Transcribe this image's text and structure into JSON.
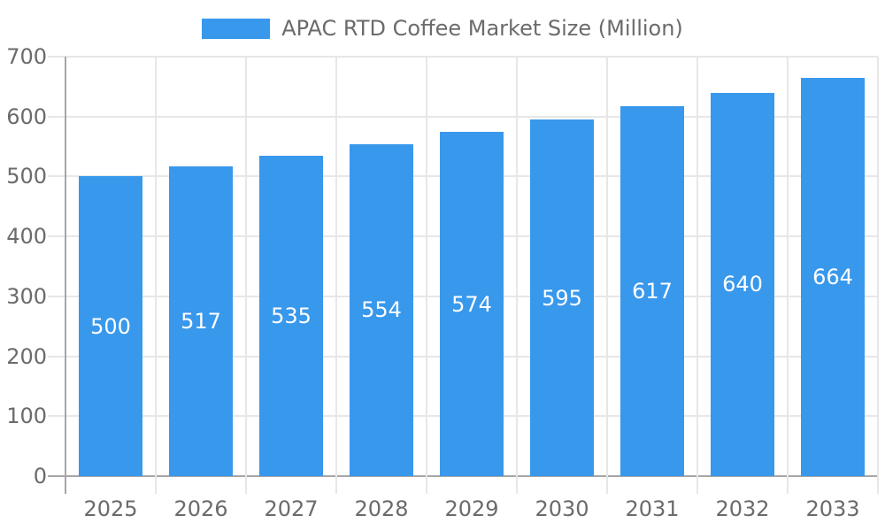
{
  "chart_data": {
    "type": "bar",
    "legend": "APAC RTD Coffee Market Size (Million)",
    "legend_position": "top",
    "categories": [
      "2025",
      "2026",
      "2027",
      "2028",
      "2029",
      "2030",
      "2031",
      "2032",
      "2033"
    ],
    "values": [
      500,
      517,
      535,
      554,
      574,
      595,
      617,
      640,
      664
    ],
    "value_labels": [
      "500",
      "517",
      "535",
      "554",
      "574",
      "595",
      "617",
      "640",
      "664"
    ],
    "value_label_position": "center-inside",
    "xlabel": "",
    "ylabel": "",
    "ylim": [
      0,
      700
    ],
    "yticks": [
      0,
      100,
      200,
      300,
      400,
      500,
      600,
      700
    ],
    "grid": "horizontal-and-vertical",
    "colors": {
      "bar": "#3898ec",
      "grid_light": "#e7e7e7",
      "grid_dark": "#a6a6a6",
      "tick_text": "#6b6b6b",
      "legend_text": "#6b6b6b",
      "value_label_text": "#ffffff",
      "background": "#ffffff"
    }
  }
}
